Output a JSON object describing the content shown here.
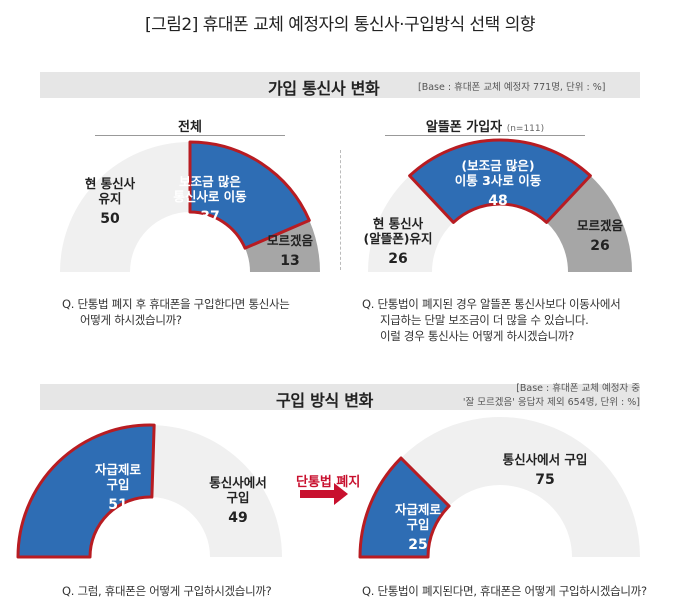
{
  "page_title": "[그림2] 휴대폰 교체 예정자의 통신사·구입방식 선택 의향",
  "section1": {
    "title": "가입 통신사 변화",
    "note": "[Base : 휴대폰 교체 예정자 771명, 단위 : %]",
    "left_panel_title": "전체",
    "right_panel_title": "알뜰폰 가입자",
    "right_panel_n": "(n=111)",
    "left_question": [
      "Q. 단통법 폐지 후 휴대폰을 구입한다면 통신사는",
      "어떻게 하시겠습니까?"
    ],
    "right_question": [
      "Q. 단통법이 폐지된 경우 알뜰폰 통신사보다 이동사에서",
      "지급하는 단말 보조금이 더 많을 수 있습니다.",
      "이럴 경우 통신사는 어떻게 하시겠습니까?"
    ]
  },
  "section2": {
    "title": "구입 방식 변화",
    "note_line1": "[Base : 휴대폰 교체 예정자 중",
    "note_line2": "'잘 모르겠음' 응답자 제외 654명, 단위 : %]",
    "arrow_label": "단통법 폐지",
    "left_question": "Q. 그럼, 휴대폰은 어떻게 구입하시겠습니까?",
    "right_question": "Q. 단통법이 폐지된다면, 휴대폰은 어떻게 구입하시겠습니까?"
  },
  "colors": {
    "highlight": "#2e6db4",
    "highlight_border": "#b81c22",
    "light": "#f0f0f0",
    "gray": "#a6a6a6"
  },
  "chart_data": [
    {
      "type": "pie",
      "title": "전체",
      "slices": [
        {
          "label_lines": [
            "현 통신사",
            "유지"
          ],
          "value": 50,
          "style": "light"
        },
        {
          "label_lines": [
            "보조금 많은",
            "통신사로 이동"
          ],
          "value": 37,
          "style": "highlight"
        },
        {
          "label_lines": [
            "모르겠음"
          ],
          "value": 13,
          "style": "gray"
        }
      ]
    },
    {
      "type": "pie",
      "title": "알뜰폰 가입자",
      "slices": [
        {
          "label_lines": [
            "현 통신사",
            "(알뜰폰)유지"
          ],
          "value": 26,
          "style": "light"
        },
        {
          "label_lines": [
            "(보조금 많은)",
            "이통 3사로 이동"
          ],
          "value": 48,
          "style": "highlight"
        },
        {
          "label_lines": [
            "모르겠음"
          ],
          "value": 26,
          "style": "gray"
        }
      ]
    },
    {
      "type": "pie",
      "title": "",
      "slices": [
        {
          "label_lines": [
            "자급제로",
            "구입"
          ],
          "value": 51,
          "style": "highlight"
        },
        {
          "label_lines": [
            "통신사에서",
            "구입"
          ],
          "value": 49,
          "style": "light"
        }
      ]
    },
    {
      "type": "pie",
      "title": "",
      "slices": [
        {
          "label_lines": [
            "자급제로",
            "구입"
          ],
          "value": 25,
          "style": "highlight"
        },
        {
          "label_lines": [
            "통신사에서 구입"
          ],
          "value": 75,
          "style": "light"
        }
      ]
    }
  ]
}
